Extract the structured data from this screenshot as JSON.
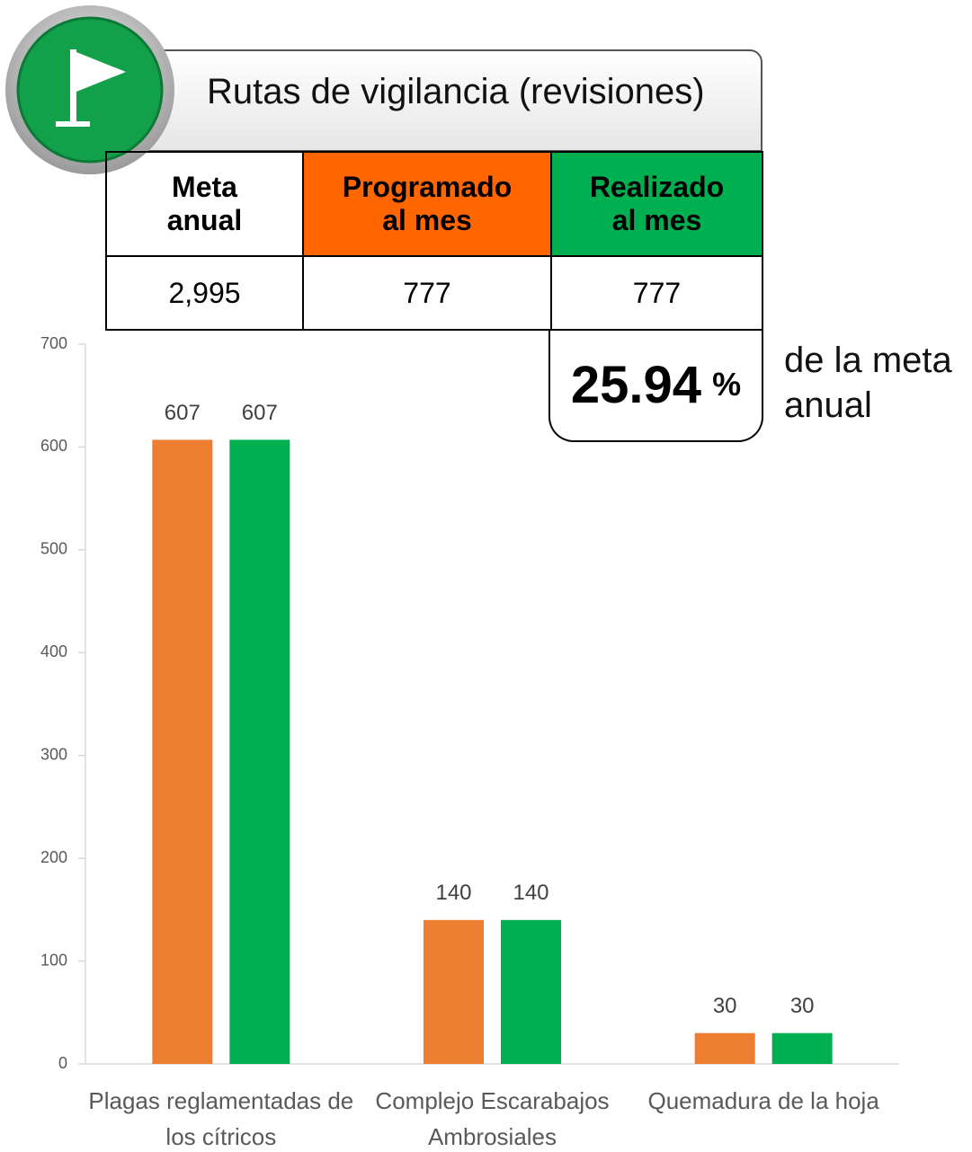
{
  "header": {
    "title": "Rutas de vigilancia (revisiones)"
  },
  "table": {
    "headers": [
      "Meta anual",
      "Programado al mes",
      "Realizado al mes"
    ],
    "rows": [
      [
        "2,995",
        "777",
        "777"
      ]
    ]
  },
  "percent": {
    "value": 25.94,
    "unit": "%",
    "caption": "de la meta anual"
  },
  "chart_data": {
    "type": "bar",
    "categories": [
      "Plagas reglamentadas de los cítricos",
      "Complejo Escarabajos Ambrosiales",
      "Quemadura de la hoja"
    ],
    "series": [
      {
        "color": "#ed7d31",
        "values": [
          607,
          140,
          30
        ]
      },
      {
        "color": "#00b050",
        "values": [
          607,
          140,
          30
        ]
      }
    ],
    "ylim": [
      0,
      700
    ],
    "yticks": [
      0,
      100,
      200,
      300,
      400,
      500,
      600,
      700
    ]
  }
}
